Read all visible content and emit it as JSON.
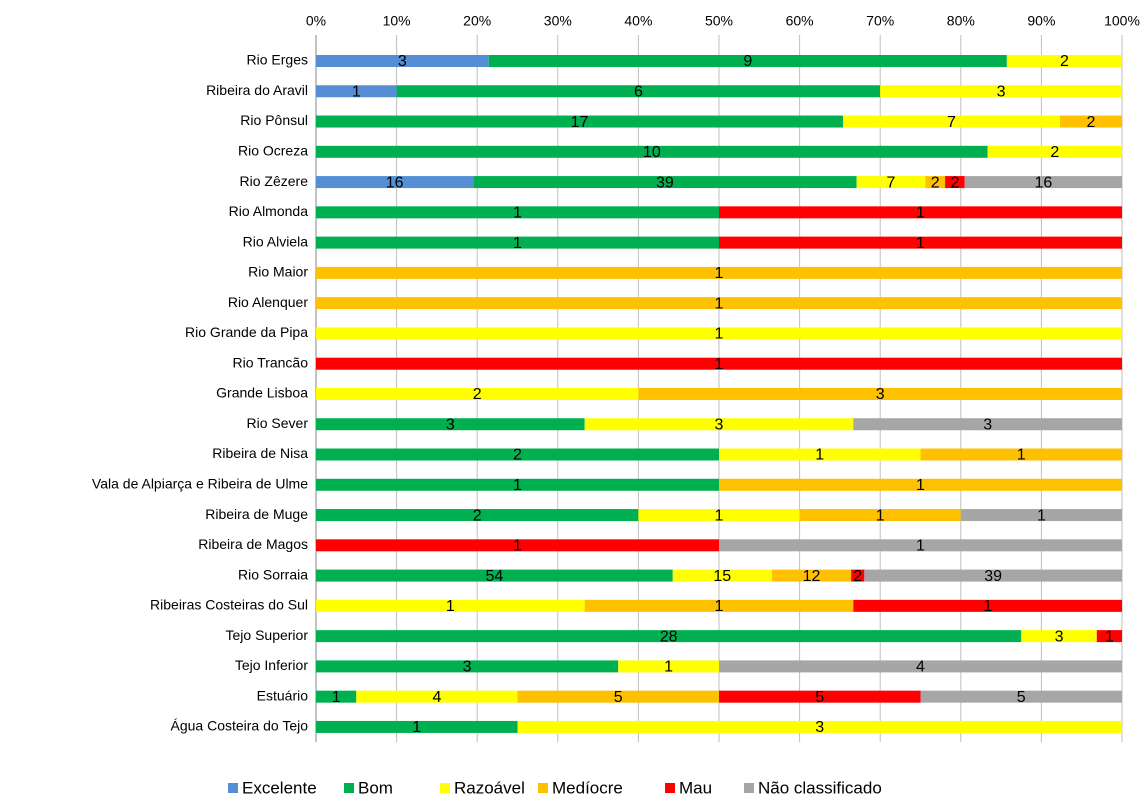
{
  "chart_data": {
    "type": "stacked_bar_100",
    "categories": [
      "Rio Erges",
      "Ribeira do Aravil",
      "Rio Pônsul",
      "Rio Ocreza",
      "Rio Zêzere",
      "Rio Almonda",
      "Rio Alviela",
      "Rio Maior",
      "Rio Alenquer",
      "Rio Grande da Pipa",
      "Rio Trancão",
      "Grande Lisboa",
      "Rio Sever",
      "Ribeira de Nisa",
      "Vala de Alpiarça e Ribeira de Ulme",
      "Ribeira de Muge",
      "Ribeira de Magos",
      "Rio Sorraia",
      "Ribeiras Costeiras do Sul",
      "Tejo Superior",
      "Tejo Inferior",
      "Estuário",
      "Água Costeira do Tejo"
    ],
    "series": [
      {
        "name": "Excelente",
        "color": "#558ed5",
        "values": [
          3,
          1,
          null,
          null,
          16,
          null,
          null,
          null,
          null,
          null,
          null,
          null,
          null,
          null,
          null,
          null,
          null,
          null,
          null,
          null,
          null,
          null,
          null
        ]
      },
      {
        "name": "Bom",
        "color": "#00b050",
        "values": [
          9,
          6,
          17,
          10,
          39,
          1,
          1,
          null,
          null,
          null,
          null,
          null,
          3,
          2,
          1,
          2,
          null,
          54,
          null,
          28,
          3,
          1,
          1
        ]
      },
      {
        "name": "Razoável",
        "color": "#ffff00",
        "values": [
          2,
          3,
          7,
          2,
          7,
          null,
          null,
          null,
          null,
          1,
          null,
          2,
          3,
          1,
          null,
          1,
          null,
          15,
          1,
          3,
          1,
          4,
          3
        ]
      },
      {
        "name": "Medíocre",
        "color": "#ffc000",
        "values": [
          null,
          null,
          2,
          null,
          2,
          null,
          null,
          1,
          1,
          null,
          null,
          3,
          null,
          1,
          1,
          1,
          null,
          12,
          1,
          null,
          null,
          5,
          null
        ]
      },
      {
        "name": "Mau",
        "color": "#ff0000",
        "values": [
          null,
          null,
          null,
          null,
          2,
          1,
          1,
          null,
          null,
          null,
          1,
          null,
          null,
          null,
          null,
          null,
          1,
          2,
          1,
          1,
          null,
          5,
          null
        ]
      },
      {
        "name": "Não classificado",
        "color": "#a6a6a6",
        "values": [
          null,
          null,
          null,
          null,
          16,
          null,
          null,
          null,
          null,
          null,
          null,
          null,
          3,
          null,
          null,
          1,
          1,
          39,
          null,
          null,
          4,
          5,
          null
        ]
      }
    ],
    "xlim": [
      0,
      100
    ],
    "xticks": [
      {
        "value": 0,
        "label": "0%"
      },
      {
        "value": 10,
        "label": "10%"
      },
      {
        "value": 20,
        "label": "20%"
      },
      {
        "value": 30,
        "label": "30%"
      },
      {
        "value": 40,
        "label": "40%"
      },
      {
        "value": 50,
        "label": "50%"
      },
      {
        "value": 60,
        "label": "60%"
      },
      {
        "value": 70,
        "label": "70%"
      },
      {
        "value": 80,
        "label": "80%"
      },
      {
        "value": 90,
        "label": "90%"
      },
      {
        "value": 100,
        "label": "100%"
      }
    ],
    "grid": true,
    "legend": "bottom"
  }
}
